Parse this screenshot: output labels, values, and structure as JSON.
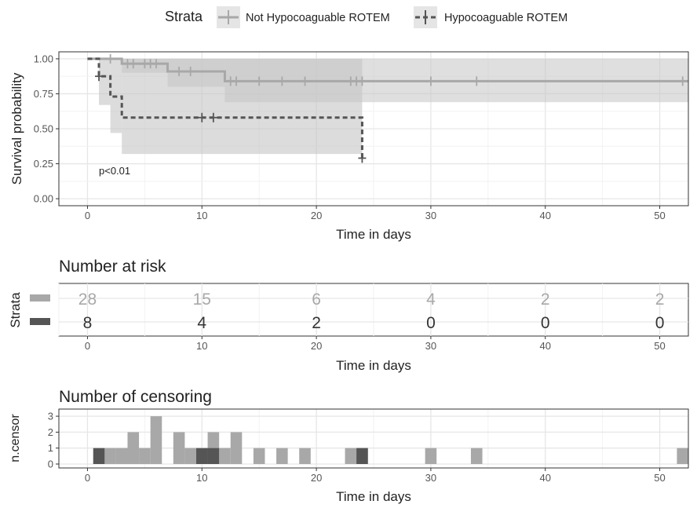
{
  "legend": {
    "title": "Strata",
    "items": [
      {
        "label": "Not Hypocoaguable ROTEM",
        "color": "#a8a8a8"
      },
      {
        "label": "Hypocoaguable ROTEM",
        "color": "#555555"
      }
    ]
  },
  "colors": {
    "light": "#a8a8a8",
    "dark": "#555555",
    "panel_bg": "#ffffff",
    "grid": "#e6e6e6",
    "band": "#c4c4c4"
  },
  "chart_data": [
    {
      "type": "line",
      "ylabel": "Survival probability",
      "xlabel": "Time in days",
      "xlim": [
        -2.5,
        52.5
      ],
      "ylim": [
        -0.05,
        1.05
      ],
      "xticks": [
        0,
        10,
        20,
        30,
        40,
        50
      ],
      "yticks": [
        "0.00",
        "0.25",
        "0.50",
        "0.75",
        "1.00"
      ],
      "annotation": "p<0.01",
      "series": [
        {
          "name": "Not Hypocoaguable ROTEM",
          "steps": [
            [
              0,
              1.0
            ],
            [
              1,
              1.0
            ],
            [
              3,
              0.965
            ],
            [
              7,
              0.91
            ],
            [
              12,
              0.84
            ],
            [
              52.5,
              0.84
            ]
          ],
          "ci": [
            [
              0,
              1.0,
              1.0
            ],
            [
              1,
              1.0,
              1.0
            ],
            [
              3,
              0.9,
              1.0
            ],
            [
              7,
              0.8,
              1.0
            ],
            [
              12,
              0.69,
              1.0
            ],
            [
              52.5,
              0.69,
              1.0
            ]
          ],
          "censor": [
            [
              2,
              1.0
            ],
            [
              3.5,
              0.965
            ],
            [
              4,
              0.965
            ],
            [
              5,
              0.965
            ],
            [
              5.5,
              0.965
            ],
            [
              6,
              0.965
            ],
            [
              8,
              0.91
            ],
            [
              9,
              0.91
            ],
            [
              12.5,
              0.84
            ],
            [
              13,
              0.84
            ],
            [
              15,
              0.84
            ],
            [
              17,
              0.84
            ],
            [
              19,
              0.84
            ],
            [
              23,
              0.84
            ],
            [
              23.5,
              0.84
            ],
            [
              24,
              0.84
            ],
            [
              30,
              0.84
            ],
            [
              34,
              0.84
            ],
            [
              52,
              0.84
            ]
          ]
        },
        {
          "name": "Hypocoaguable ROTEM",
          "steps": [
            [
              0,
              1.0
            ],
            [
              1,
              0.875
            ],
            [
              2,
              0.73
            ],
            [
              3,
              0.58
            ],
            [
              24,
              0.58
            ],
            [
              24,
              0.29
            ]
          ],
          "ci": [
            [
              1,
              0.67,
              1.0
            ],
            [
              2,
              0.47,
              1.0
            ],
            [
              3,
              0.32,
              1.0
            ],
            [
              24,
              0.32,
              1.0
            ]
          ],
          "censor": [
            [
              1,
              0.875
            ],
            [
              10,
              0.58
            ],
            [
              11,
              0.58
            ],
            [
              24,
              0.29
            ]
          ]
        }
      ]
    },
    {
      "type": "table",
      "title": "Number at risk",
      "ylabel": "Strata",
      "xlabel": "Time in days",
      "xticks": [
        0,
        10,
        20,
        30,
        40,
        50
      ],
      "rows": [
        {
          "name": "Not Hypocoaguable ROTEM",
          "values": [
            28,
            15,
            6,
            4,
            2,
            2
          ]
        },
        {
          "name": "Hypocoaguable ROTEM",
          "values": [
            8,
            4,
            2,
            0,
            0,
            0
          ]
        }
      ]
    },
    {
      "type": "bar",
      "title": "Number of censoring",
      "ylabel": "n.censor",
      "xlabel": "Time in days",
      "xticks": [
        0,
        10,
        20,
        30,
        40,
        50
      ],
      "yticks": [
        0,
        1,
        2,
        3
      ],
      "series": [
        {
          "name": "Not Hypocoaguable ROTEM",
          "bars": [
            [
              2,
              1
            ],
            [
              3,
              1
            ],
            [
              4,
              2
            ],
            [
              5,
              1
            ],
            [
              6,
              3
            ],
            [
              8,
              2
            ],
            [
              9,
              1
            ],
            [
              11,
              2
            ],
            [
              12,
              1
            ],
            [
              13,
              2
            ],
            [
              15,
              1
            ],
            [
              17,
              1
            ],
            [
              19,
              1
            ],
            [
              23,
              1
            ],
            [
              24,
              1
            ],
            [
              30,
              1
            ],
            [
              34,
              1
            ],
            [
              52,
              1
            ]
          ]
        },
        {
          "name": "Hypocoaguable ROTEM",
          "bars": [
            [
              1,
              1
            ],
            [
              10,
              1
            ],
            [
              11,
              1
            ],
            [
              24,
              1
            ]
          ]
        }
      ]
    }
  ]
}
